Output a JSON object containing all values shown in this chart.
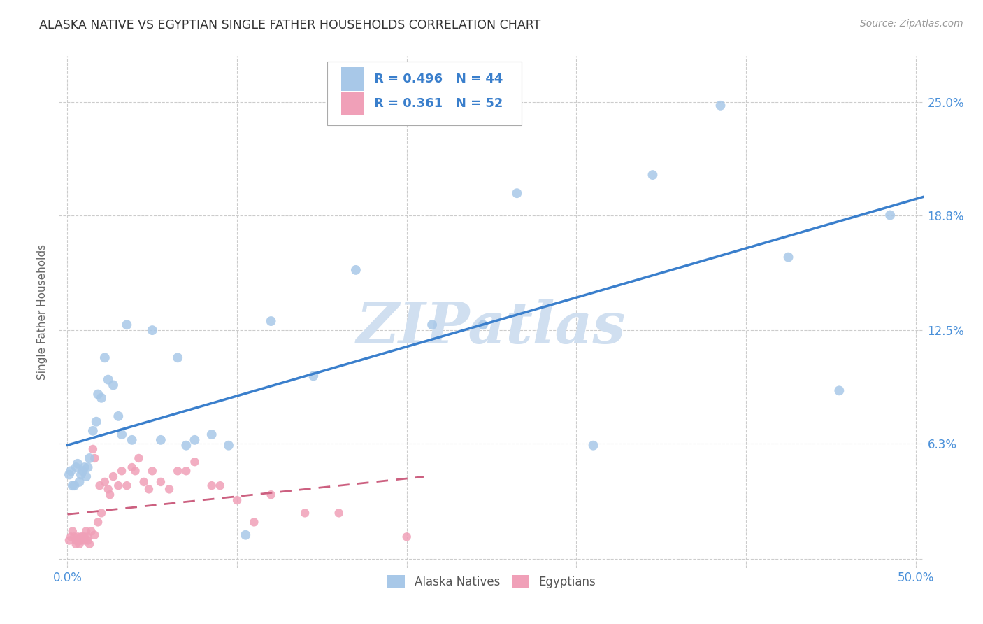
{
  "title": "ALASKA NATIVE VS EGYPTIAN SINGLE FATHER HOUSEHOLDS CORRELATION CHART",
  "source": "Source: ZipAtlas.com",
  "ylabel": "Single Father Households",
  "ytick_values": [
    0.0,
    0.063,
    0.125,
    0.188,
    0.25
  ],
  "xtick_values": [
    0.0,
    0.1,
    0.2,
    0.3,
    0.4,
    0.5
  ],
  "xlim": [
    -0.005,
    0.505
  ],
  "ylim": [
    -0.005,
    0.275
  ],
  "alaska_color": "#a8c8e8",
  "egypt_color": "#f0a0b8",
  "alaska_line_color": "#3a7fcc",
  "egypt_line_color": "#cc6080",
  "tick_color": "#4a90d9",
  "watermark_color": "#d0dff0",
  "legend_blue_label": "Alaska Natives",
  "legend_pink_label": "Egyptians",
  "alaska_R": "0.496",
  "alaska_N": "44",
  "egypt_R": "0.361",
  "egypt_N": "52",
  "alaska_x": [
    0.001,
    0.002,
    0.003,
    0.004,
    0.005,
    0.006,
    0.007,
    0.008,
    0.009,
    0.01,
    0.011,
    0.012,
    0.013,
    0.015,
    0.017,
    0.018,
    0.02,
    0.022,
    0.024,
    0.027,
    0.03,
    0.032,
    0.035,
    0.038,
    0.05,
    0.055,
    0.065,
    0.07,
    0.075,
    0.085,
    0.095,
    0.105,
    0.12,
    0.145,
    0.17,
    0.215,
    0.245,
    0.265,
    0.31,
    0.345,
    0.385,
    0.425,
    0.455,
    0.485
  ],
  "alaska_y": [
    0.046,
    0.048,
    0.04,
    0.04,
    0.05,
    0.052,
    0.042,
    0.046,
    0.048,
    0.05,
    0.045,
    0.05,
    0.055,
    0.07,
    0.075,
    0.09,
    0.088,
    0.11,
    0.098,
    0.095,
    0.078,
    0.068,
    0.128,
    0.065,
    0.125,
    0.065,
    0.11,
    0.062,
    0.065,
    0.068,
    0.062,
    0.013,
    0.13,
    0.1,
    0.158,
    0.128,
    0.128,
    0.2,
    0.062,
    0.21,
    0.248,
    0.165,
    0.092,
    0.188
  ],
  "egypt_x": [
    0.001,
    0.002,
    0.003,
    0.004,
    0.005,
    0.005,
    0.006,
    0.006,
    0.007,
    0.007,
    0.008,
    0.008,
    0.009,
    0.01,
    0.01,
    0.011,
    0.012,
    0.012,
    0.013,
    0.014,
    0.015,
    0.016,
    0.016,
    0.018,
    0.019,
    0.02,
    0.022,
    0.024,
    0.025,
    0.027,
    0.03,
    0.032,
    0.035,
    0.038,
    0.04,
    0.042,
    0.045,
    0.048,
    0.05,
    0.055,
    0.06,
    0.065,
    0.07,
    0.075,
    0.085,
    0.09,
    0.1,
    0.11,
    0.12,
    0.14,
    0.16,
    0.2
  ],
  "egypt_y": [
    0.01,
    0.012,
    0.015,
    0.012,
    0.008,
    0.01,
    0.01,
    0.012,
    0.008,
    0.01,
    0.012,
    0.01,
    0.012,
    0.01,
    0.012,
    0.015,
    0.01,
    0.012,
    0.008,
    0.015,
    0.06,
    0.013,
    0.055,
    0.02,
    0.04,
    0.025,
    0.042,
    0.038,
    0.035,
    0.045,
    0.04,
    0.048,
    0.04,
    0.05,
    0.048,
    0.055,
    0.042,
    0.038,
    0.048,
    0.042,
    0.038,
    0.048,
    0.048,
    0.053,
    0.04,
    0.04,
    0.032,
    0.02,
    0.035,
    0.025,
    0.025,
    0.012
  ]
}
